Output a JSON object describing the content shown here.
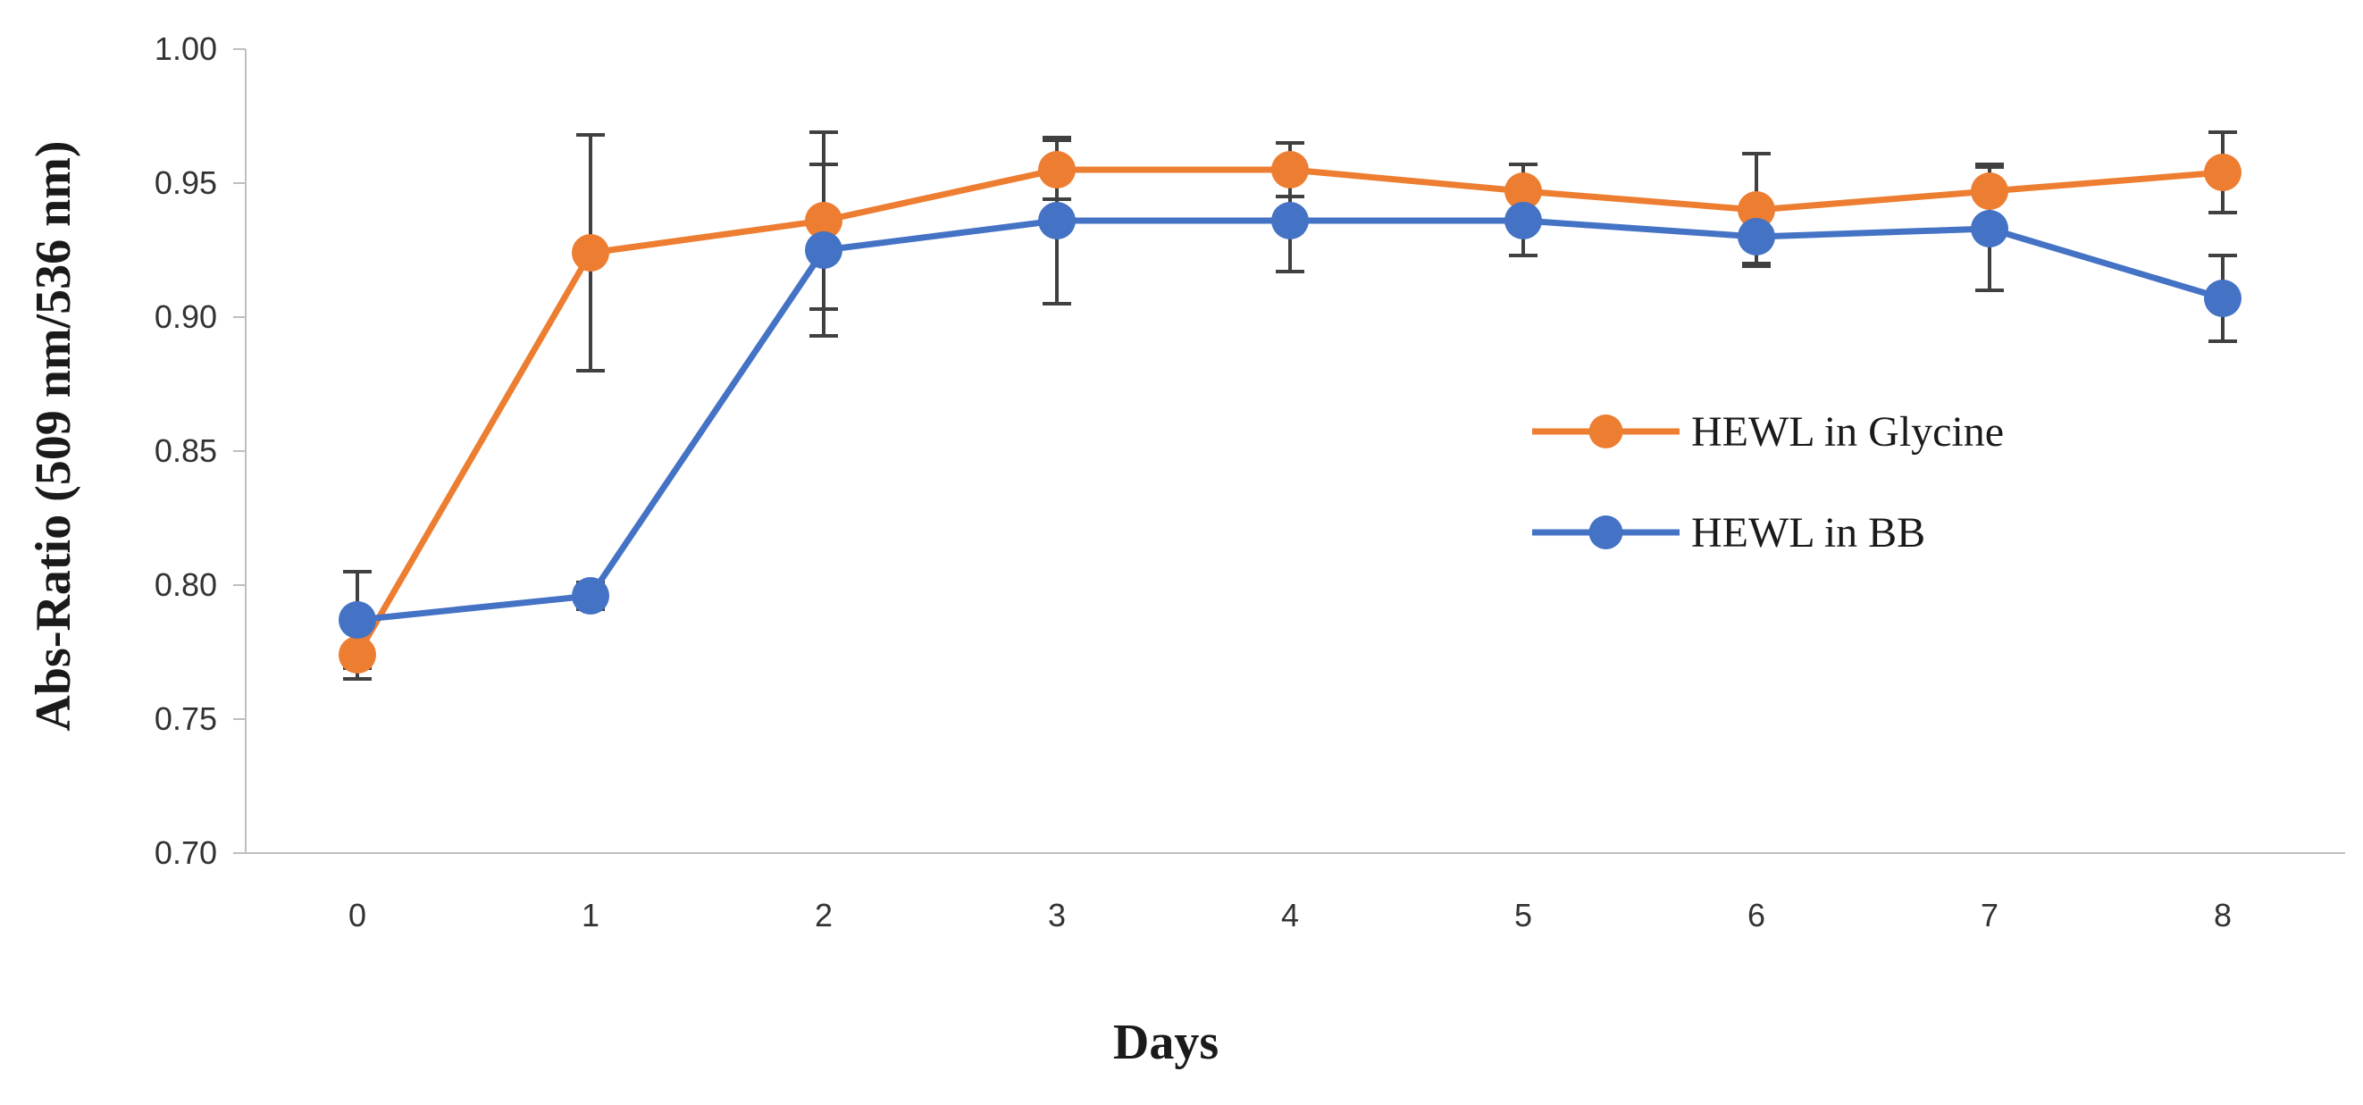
{
  "chart_data": {
    "type": "line",
    "title": "",
    "xlabel": "Days",
    "ylabel": "Abs-Ratio (509 nm/536 nm)",
    "x": [
      0,
      1,
      2,
      3,
      4,
      5,
      6,
      7,
      8
    ],
    "ylim": [
      0.7,
      1.0
    ],
    "yticks": [
      "0.70",
      "0.75",
      "0.80",
      "0.85",
      "0.90",
      "0.95",
      "1.00"
    ],
    "xticks": [
      "0",
      "1",
      "2",
      "3",
      "4",
      "5",
      "6",
      "7",
      "8"
    ],
    "grid": false,
    "legend_position": "center-right",
    "series": [
      {
        "name": "HEWL in Glycine",
        "color": "#ED7D31",
        "values": [
          0.774,
          0.924,
          0.936,
          0.955,
          0.955,
          0.947,
          0.94,
          0.947,
          0.954
        ],
        "errors": [
          0.009,
          0.044,
          0.033,
          0.011,
          0.01,
          0.01,
          0.021,
          0.01,
          0.015
        ]
      },
      {
        "name": "HEWL in BB",
        "color": "#4472C4",
        "values": [
          0.787,
          0.796,
          0.925,
          0.936,
          0.936,
          0.936,
          0.93,
          0.933,
          0.907
        ],
        "errors": [
          0.018,
          0.005,
          0.032,
          0.031,
          0.019,
          0.013,
          0.01,
          0.023,
          0.016
        ]
      }
    ]
  }
}
